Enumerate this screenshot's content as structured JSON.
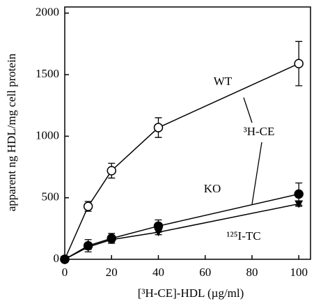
{
  "chart_data": {
    "type": "line",
    "x_label": "[³H-CE]-HDL (µg/ml)",
    "y_label": "apparent ng HDL/mg cell protein",
    "annotation": "³H-CE",
    "x": [
      0,
      10,
      20,
      40,
      100
    ],
    "series": [
      {
        "name": "WT",
        "color": "#000000",
        "marker": "open-circle",
        "values": [
          0,
          430,
          720,
          1070,
          1590
        ],
        "errors": [
          0,
          40,
          60,
          80,
          180
        ]
      },
      {
        "name": "KO",
        "color": "#000000",
        "marker": "filled-circle",
        "values": [
          0,
          110,
          170,
          270,
          530
        ],
        "errors": [
          0,
          50,
          40,
          50,
          90
        ]
      },
      {
        "name": "¹²⁵I-TC",
        "color": "#000000",
        "marker": "triangle-down",
        "values": [
          0,
          100,
          160,
          220,
          450
        ],
        "errors": [
          0,
          20,
          20,
          20,
          20
        ]
      }
    ],
    "xlim": [
      0,
      105
    ],
    "xticks": [
      0,
      20,
      40,
      60,
      80,
      100
    ],
    "ylim": [
      0,
      2050
    ],
    "yticks": [
      0,
      500,
      1000,
      1500,
      2000
    ]
  }
}
